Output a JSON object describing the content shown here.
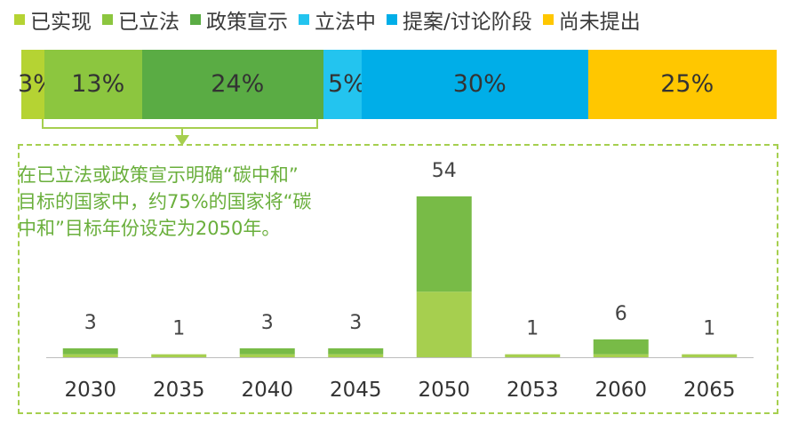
{
  "legend": [
    {
      "label": "已实现",
      "color": "#b5d333"
    },
    {
      "label": "已立法",
      "color": "#8cc63f"
    },
    {
      "label": "政策宣示",
      "color": "#5aac44"
    },
    {
      "label": "立法中",
      "color": "#23c4ef"
    },
    {
      "label": "提案/讨论阶段",
      "color": "#00aee8"
    },
    {
      "label": "尚未提出",
      "color": "#ffc700"
    }
  ],
  "stacked_bar": {
    "segments": [
      {
        "label": "3%",
        "value": 3,
        "color": "#b5d333"
      },
      {
        "label": "13%",
        "value": 13,
        "color": "#8cc63f"
      },
      {
        "label": "24%",
        "value": 24,
        "color": "#5aac44"
      },
      {
        "label": "5%",
        "value": 5,
        "color": "#23c4ef"
      },
      {
        "label": "30%",
        "value": 30,
        "color": "#00aee8"
      },
      {
        "label": "25%",
        "value": 25,
        "color": "#ffc700"
      }
    ]
  },
  "annotation": {
    "lines": [
      "在已立法或政策宣示明确“碳中和”",
      "目标的国家中，约75%的国家将“碳",
      "中和”目标年份设定为2050年。"
    ]
  },
  "chart_data": {
    "type": "bar",
    "title": "",
    "xlabel": "",
    "ylabel": "",
    "categories": [
      "2030",
      "2035",
      "2040",
      "2045",
      "2050",
      "2053",
      "2060",
      "2065"
    ],
    "values": [
      3,
      1,
      3,
      3,
      54,
      1,
      6,
      1
    ],
    "series": [
      {
        "name": "已立法",
        "color": "#a6cf4f",
        "values": [
          1,
          1,
          1,
          1,
          22,
          1,
          1,
          1
        ]
      },
      {
        "name": "政策宣示",
        "color": "#78bb47",
        "values": [
          2,
          0,
          2,
          2,
          32,
          0,
          5,
          0
        ]
      }
    ],
    "ylim": [
      0,
      54
    ]
  }
}
